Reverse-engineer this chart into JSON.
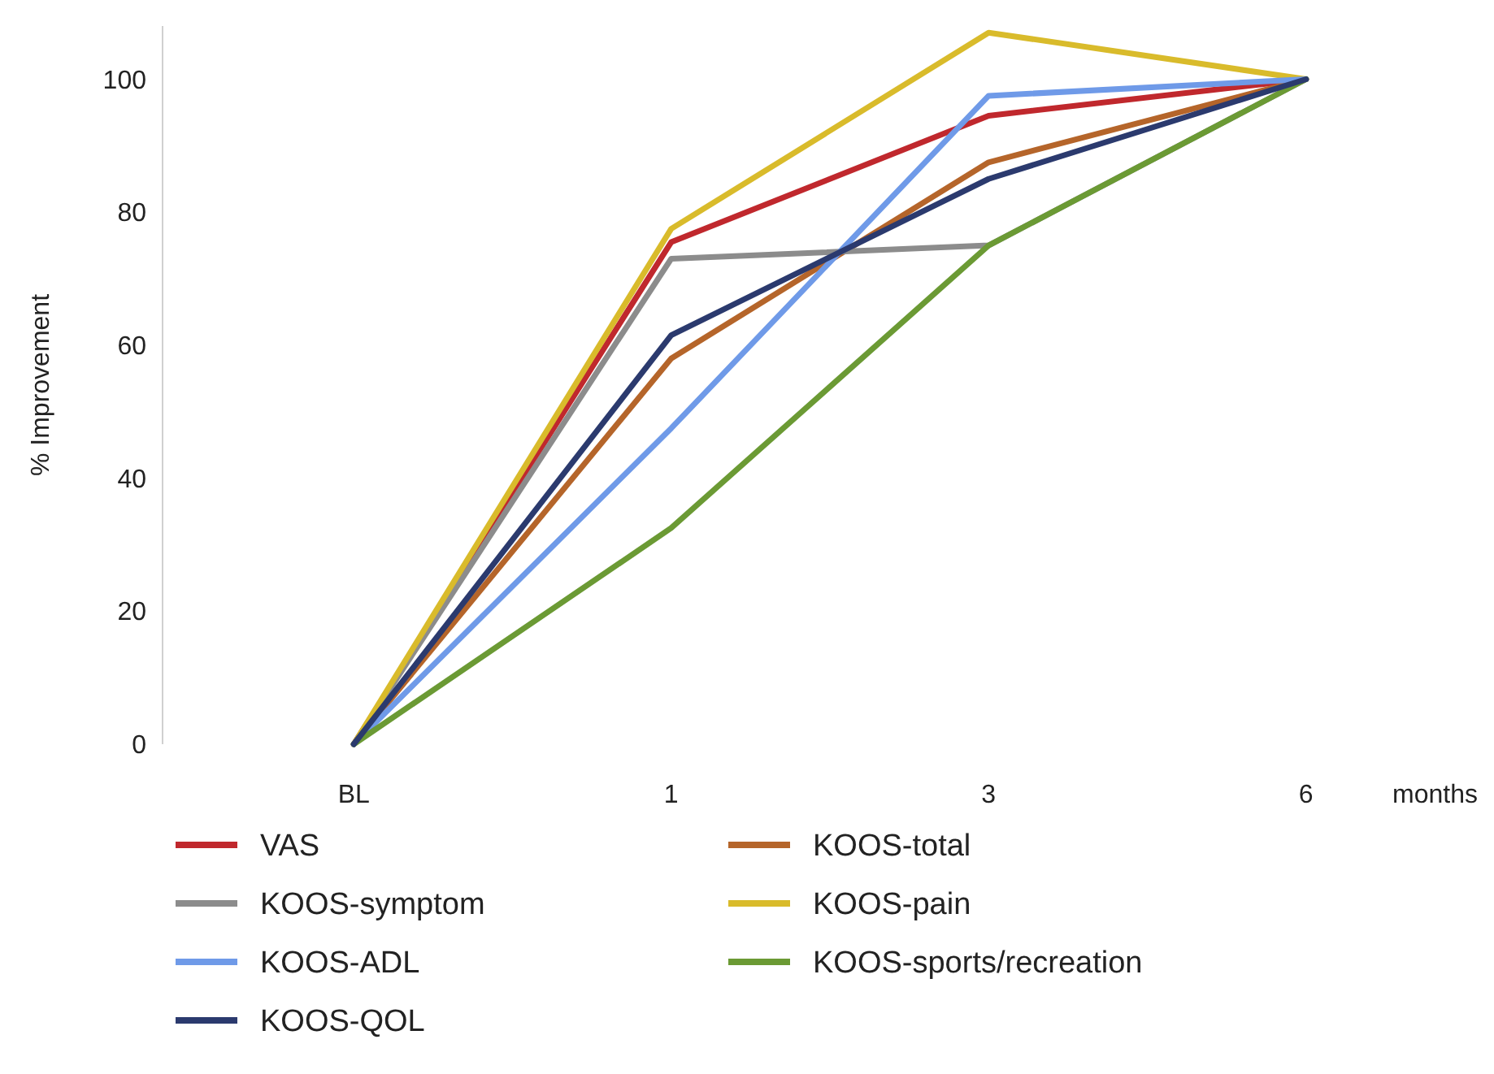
{
  "chart_data": {
    "type": "line",
    "xlabel": "months",
    "ylabel": "% Improvement",
    "categories": [
      "BL",
      "1",
      "3",
      "6"
    ],
    "ylim": [
      0,
      108
    ],
    "yticks": [
      0,
      20,
      40,
      60,
      80,
      100
    ],
    "grid": false,
    "legend": "bottom",
    "marker": "none",
    "line_style": "solid",
    "series": [
      {
        "name": "VAS",
        "color": "#c0282d",
        "values": [
          0,
          75.5,
          94.5,
          100
        ]
      },
      {
        "name": "KOOS-total",
        "color": "#b5652a",
        "values": [
          0,
          58,
          87.5,
          100
        ]
      },
      {
        "name": "KOOS-symptom",
        "color": "#8c8c8c",
        "values": [
          0,
          73,
          75,
          100
        ]
      },
      {
        "name": "KOOS-pain",
        "color": "#d9bb2b",
        "values": [
          0,
          77.5,
          107,
          100
        ]
      },
      {
        "name": "KOOS-ADL",
        "color": "#6f9ae8",
        "values": [
          0,
          47.5,
          97.5,
          100
        ]
      },
      {
        "name": "KOOS-sports/recreation",
        "color": "#6b9a34",
        "values": [
          0,
          32.5,
          75,
          100
        ]
      },
      {
        "name": "KOOS-QOL",
        "color": "#2b3a6e",
        "values": [
          0,
          61.5,
          85,
          100
        ]
      }
    ]
  }
}
